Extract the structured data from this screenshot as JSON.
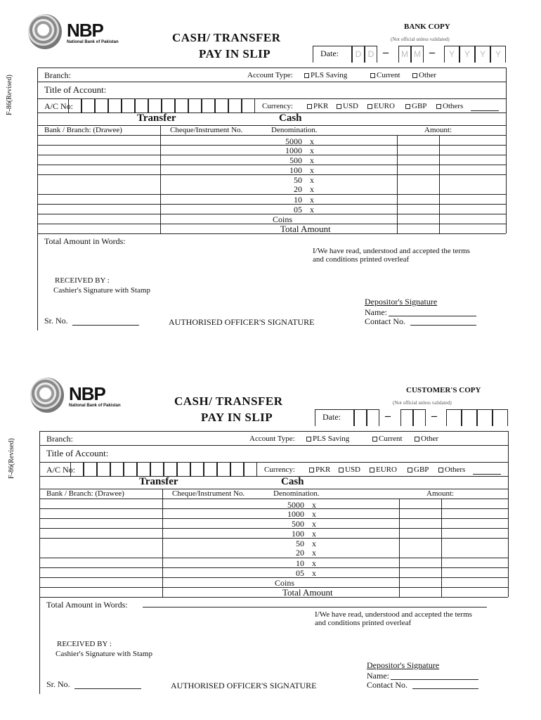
{
  "form": {
    "bank_name": "NBP",
    "bank_full_name": "National Bank of Pakistan",
    "title_line1": "CASH/ TRANSFER",
    "title_line2": "PAY IN SLIP",
    "date_label": "Date:",
    "date_separator": "–",
    "side_code": "F-86(Revised)",
    "branch_label": "Branch:",
    "account_type_label": "Account Type:",
    "account_types": [
      "PLS Saving",
      "Current",
      "Other"
    ],
    "title_of_account_label": "Title of Account:",
    "ac_no_label": "A/C No:",
    "currency_label": "Currency:",
    "currencies": [
      "PKR",
      "USD",
      "EURO",
      "GBP",
      "Others"
    ],
    "transfer_heading": "Transfer",
    "cash_heading": "Cash",
    "col_bank_branch": "Bank / Branch:  (Drawee)",
    "col_cheque": "Cheque/Instrument No.",
    "col_denomination": "Denomination.",
    "col_amount": "Amount:",
    "denominations": [
      "5000",
      "1000",
      "500",
      "100",
      "50",
      "20",
      "10",
      "05"
    ],
    "multiply_sign": "x",
    "coins_label": "Coins",
    "total_amount_label": "Total Amount",
    "total_words_label": "Total Amount in Words:",
    "declaration_line1": "I/We have read, understood and accepted the terms",
    "declaration_line2": "and conditions printed overleaf",
    "received_by_label": "RECEIVED BY :",
    "cashier_signature_label": "Cashier's Signature with Stamp",
    "depositor_signature_label": "Depositor's  Signature",
    "name_label": "Name:",
    "contact_label": "Contact No.",
    "sr_no_label": "Sr. No.",
    "authorised_signature_label": "AUTHORISED OFFICER'S SIGNATURE"
  },
  "copies": [
    {
      "copy_label": "BANK COPY",
      "note": "(Not official unless validated)",
      "date_placeholders": [
        "D",
        "D",
        "M",
        "M",
        "Y",
        "Y",
        "Y",
        "Y"
      ]
    },
    {
      "copy_label": "CUSTOMER'S COPY",
      "note": "(Not official unless validated)",
      "date_placeholders": [
        "",
        "",
        "",
        "",
        "",
        "",
        "",
        ""
      ]
    }
  ]
}
